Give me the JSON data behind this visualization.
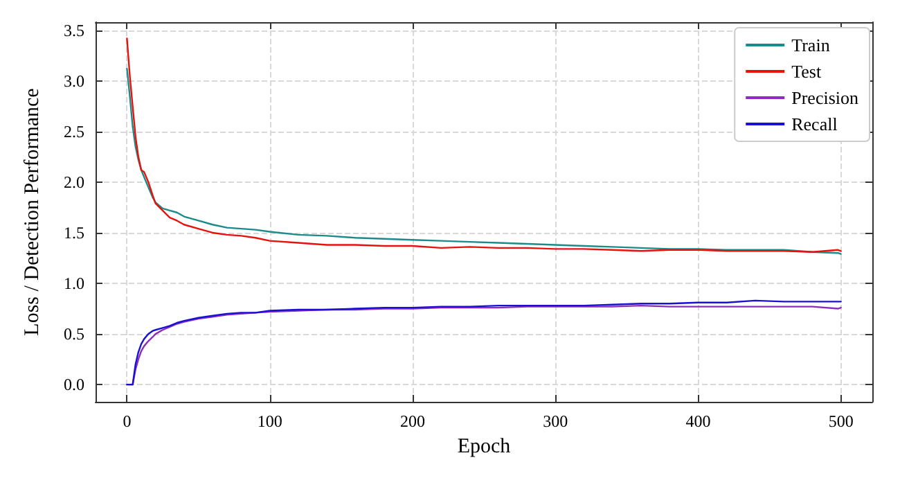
{
  "chart_data": {
    "type": "line",
    "xlabel": "Epoch",
    "ylabel": "Loss / Detection Performance",
    "x": [
      0,
      2,
      4,
      6,
      8,
      10,
      12,
      15,
      18,
      20,
      25,
      30,
      35,
      40,
      50,
      60,
      70,
      80,
      90,
      100,
      120,
      140,
      160,
      180,
      200,
      220,
      240,
      260,
      280,
      300,
      320,
      340,
      360,
      380,
      400,
      420,
      440,
      460,
      480,
      498,
      500
    ],
    "series": [
      {
        "name": "Train",
        "color": "#1a8a8a",
        "values": [
          3.12,
          2.85,
          2.55,
          2.35,
          2.22,
          2.12,
          2.05,
          1.95,
          1.85,
          1.8,
          1.74,
          1.72,
          1.7,
          1.66,
          1.62,
          1.58,
          1.55,
          1.54,
          1.53,
          1.51,
          1.48,
          1.47,
          1.45,
          1.44,
          1.43,
          1.42,
          1.41,
          1.4,
          1.39,
          1.38,
          1.37,
          1.36,
          1.35,
          1.34,
          1.34,
          1.33,
          1.33,
          1.33,
          1.31,
          1.3,
          1.29
        ]
      },
      {
        "name": "Test",
        "color": "#e8120c",
        "values": [
          3.42,
          3.05,
          2.75,
          2.45,
          2.25,
          2.12,
          2.1,
          2.0,
          1.87,
          1.79,
          1.72,
          1.65,
          1.62,
          1.58,
          1.54,
          1.5,
          1.48,
          1.47,
          1.45,
          1.42,
          1.4,
          1.38,
          1.38,
          1.37,
          1.37,
          1.35,
          1.36,
          1.35,
          1.35,
          1.34,
          1.34,
          1.33,
          1.32,
          1.33,
          1.33,
          1.32,
          1.32,
          1.32,
          1.31,
          1.33,
          1.32
        ]
      },
      {
        "name": "Precision",
        "color": "#8b2dbf",
        "values": [
          0,
          0,
          0,
          0.15,
          0.25,
          0.33,
          0.38,
          0.43,
          0.47,
          0.5,
          0.54,
          0.57,
          0.6,
          0.62,
          0.65,
          0.67,
          0.69,
          0.7,
          0.71,
          0.72,
          0.73,
          0.74,
          0.74,
          0.75,
          0.75,
          0.76,
          0.76,
          0.76,
          0.77,
          0.77,
          0.77,
          0.77,
          0.78,
          0.77,
          0.77,
          0.77,
          0.77,
          0.77,
          0.77,
          0.75,
          0.76
        ]
      },
      {
        "name": "Recall",
        "color": "#1a10d0",
        "values": [
          0,
          0,
          0,
          0.2,
          0.32,
          0.4,
          0.45,
          0.5,
          0.53,
          0.54,
          0.56,
          0.58,
          0.61,
          0.63,
          0.66,
          0.68,
          0.7,
          0.71,
          0.71,
          0.73,
          0.74,
          0.74,
          0.75,
          0.76,
          0.76,
          0.77,
          0.77,
          0.78,
          0.78,
          0.78,
          0.78,
          0.79,
          0.8,
          0.8,
          0.81,
          0.81,
          0.83,
          0.82,
          0.82,
          0.82,
          0.82
        ]
      }
    ],
    "xlim": [
      -22,
      522
    ],
    "xticks": [
      0,
      100,
      200,
      300,
      400,
      500
    ],
    "ylim": [
      -0.17,
      3.58
    ],
    "yticks": [
      {
        "value": 0,
        "label": "0.0"
      },
      0.5,
      {
        "value": 1,
        "label": "1.0"
      },
      1.5,
      {
        "value": 2,
        "label": "2.0"
      },
      2.5,
      {
        "value": 3,
        "label": "3.0"
      },
      3.5
    ],
    "grid": true,
    "legend": "top right",
    "marker": "none",
    "line_style": "solid"
  }
}
